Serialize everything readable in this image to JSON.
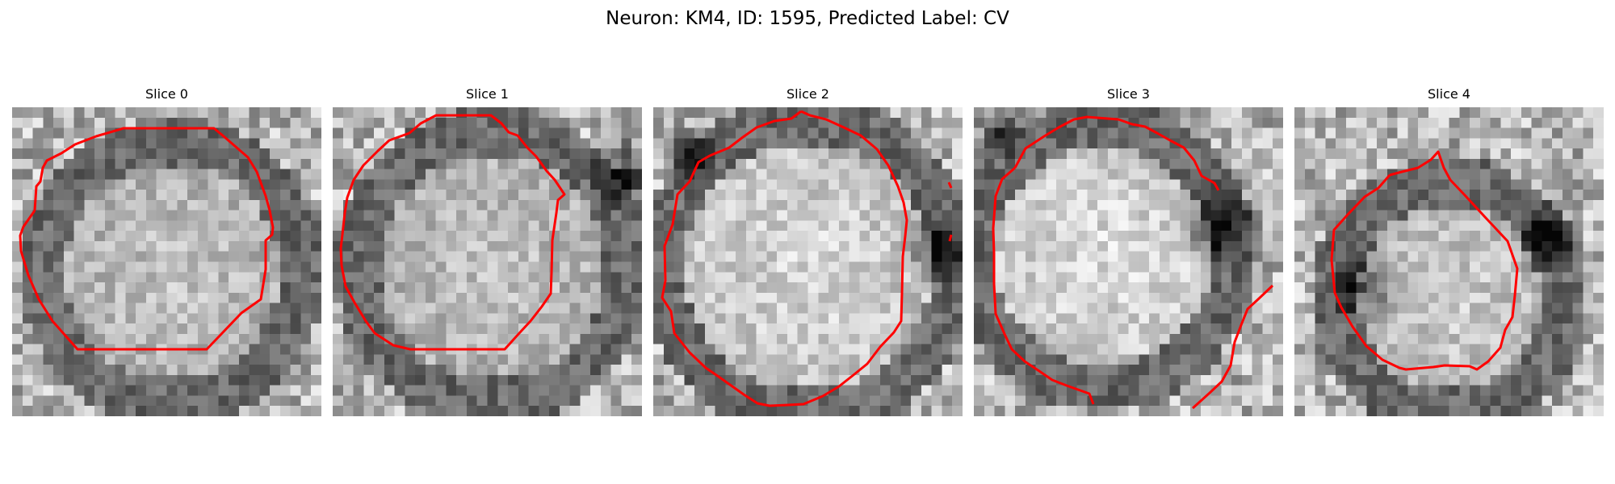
{
  "figure": {
    "title": "Neuron: KM4, ID: 1595, Predicted Label: CV"
  },
  "panels": [
    {
      "title": "Slice 0",
      "contour_color": "#ff0000",
      "colormap": "grayscale"
    },
    {
      "title": "Slice 1",
      "contour_color": "#ff0000",
      "colormap": "grayscale"
    },
    {
      "title": "Slice 2",
      "contour_color": "#ff0000",
      "colormap": "grayscale"
    },
    {
      "title": "Slice 3",
      "contour_color": "#ff0000",
      "colormap": "grayscale"
    },
    {
      "title": "Slice 4",
      "contour_color": "#ff0000",
      "colormap": "grayscale"
    }
  ]
}
